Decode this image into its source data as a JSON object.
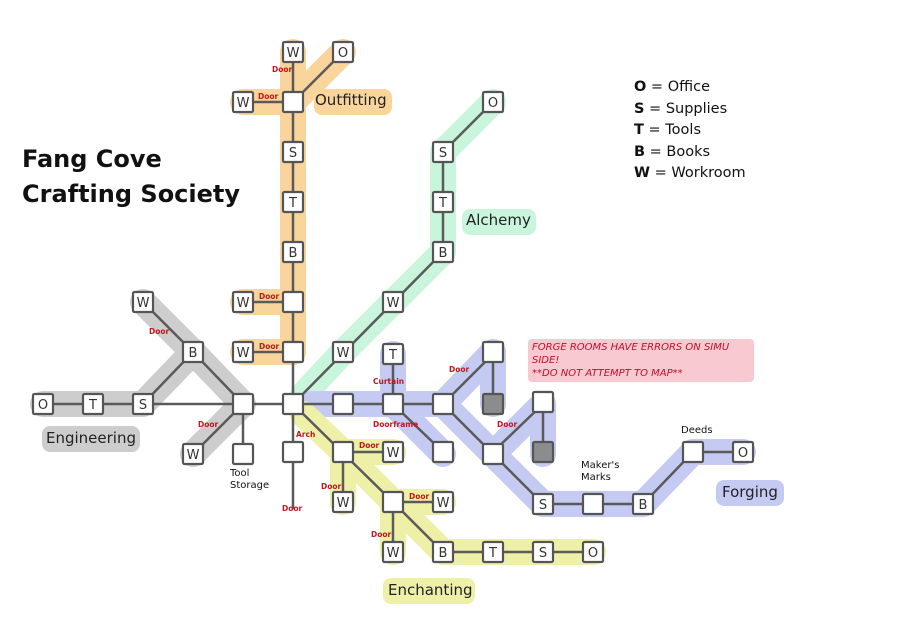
{
  "title_lines": [
    "Fang Cove",
    "Crafting Society"
  ],
  "legend": [
    {
      "key": "O",
      "text": " = Office"
    },
    {
      "key": "S",
      "text": " = Supplies"
    },
    {
      "key": "T",
      "text": " = Tools"
    },
    {
      "key": "B",
      "text": " = Books"
    },
    {
      "key": "W",
      "text": " = Workroom"
    }
  ],
  "warning_lines": [
    "FORGE ROOMS HAVE ERRORS ON SIMU SIDE!",
    "**DO NOT ATTEMPT TO MAP**"
  ],
  "wings": {
    "outfitting": {
      "label": "Outfitting",
      "color": "#f9d59c"
    },
    "alchemy": {
      "label": "Alchemy",
      "color": "#c9f5dd"
    },
    "engineering": {
      "label": "Engineering",
      "color": "#cdcdcd"
    },
    "forging": {
      "label": "Forging",
      "color": "#c5caf2"
    },
    "enchanting": {
      "label": "Enchanting",
      "color": "#eef0a8"
    }
  },
  "small_labels": {
    "tool_storage": "Tool\nStorage",
    "makers_marks": "Maker's\nMarks",
    "deeds": "Deeds"
  },
  "door_labels": {
    "door": "Door",
    "arch": "Arch",
    "curtain": "Curtain",
    "doorframe": "Doorframe"
  },
  "colors": {
    "line": "#5a5a5a",
    "node_border": "#555555",
    "node_fill": "#ffffff",
    "disabled_fill": "#8c8c8c",
    "warning_bg": "#f9c9d1",
    "warning_text": "#c0102a",
    "door_text": "#c2161b"
  }
}
